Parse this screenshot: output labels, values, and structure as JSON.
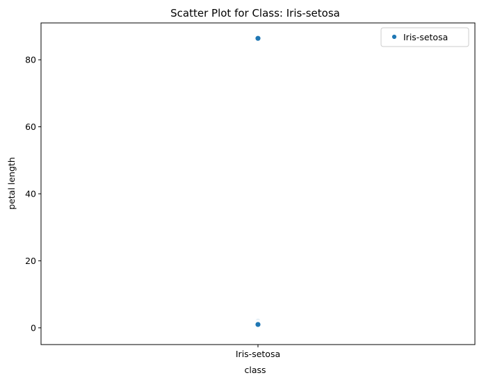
{
  "chart_data": {
    "type": "scatter",
    "title": "Scatter Plot for Class: Iris-setosa",
    "xlabel": "class",
    "ylabel": "petal length",
    "categories": [
      "Iris-setosa"
    ],
    "yticks": [
      0,
      20,
      40,
      60,
      80
    ],
    "ylim": [
      -5,
      91
    ],
    "series": [
      {
        "name": "Iris-setosa",
        "color": "#1f77b4",
        "points": [
          {
            "x": "Iris-setosa",
            "y": 86.4
          },
          {
            "x": "Iris-setosa",
            "y": 1.9
          },
          {
            "x": "Iris-setosa",
            "y": 1.7
          },
          {
            "x": "Iris-setosa",
            "y": 1.6
          },
          {
            "x": "Iris-setosa",
            "y": 1.5
          },
          {
            "x": "Iris-setosa",
            "y": 1.4
          },
          {
            "x": "Iris-setosa",
            "y": 1.3
          },
          {
            "x": "Iris-setosa",
            "y": 1.2
          },
          {
            "x": "Iris-setosa",
            "y": 1.1
          },
          {
            "x": "Iris-setosa",
            "y": 1.0
          }
        ]
      }
    ],
    "legend": {
      "placement": "top-right",
      "entries": [
        "Iris-setosa"
      ]
    },
    "grid": false
  }
}
